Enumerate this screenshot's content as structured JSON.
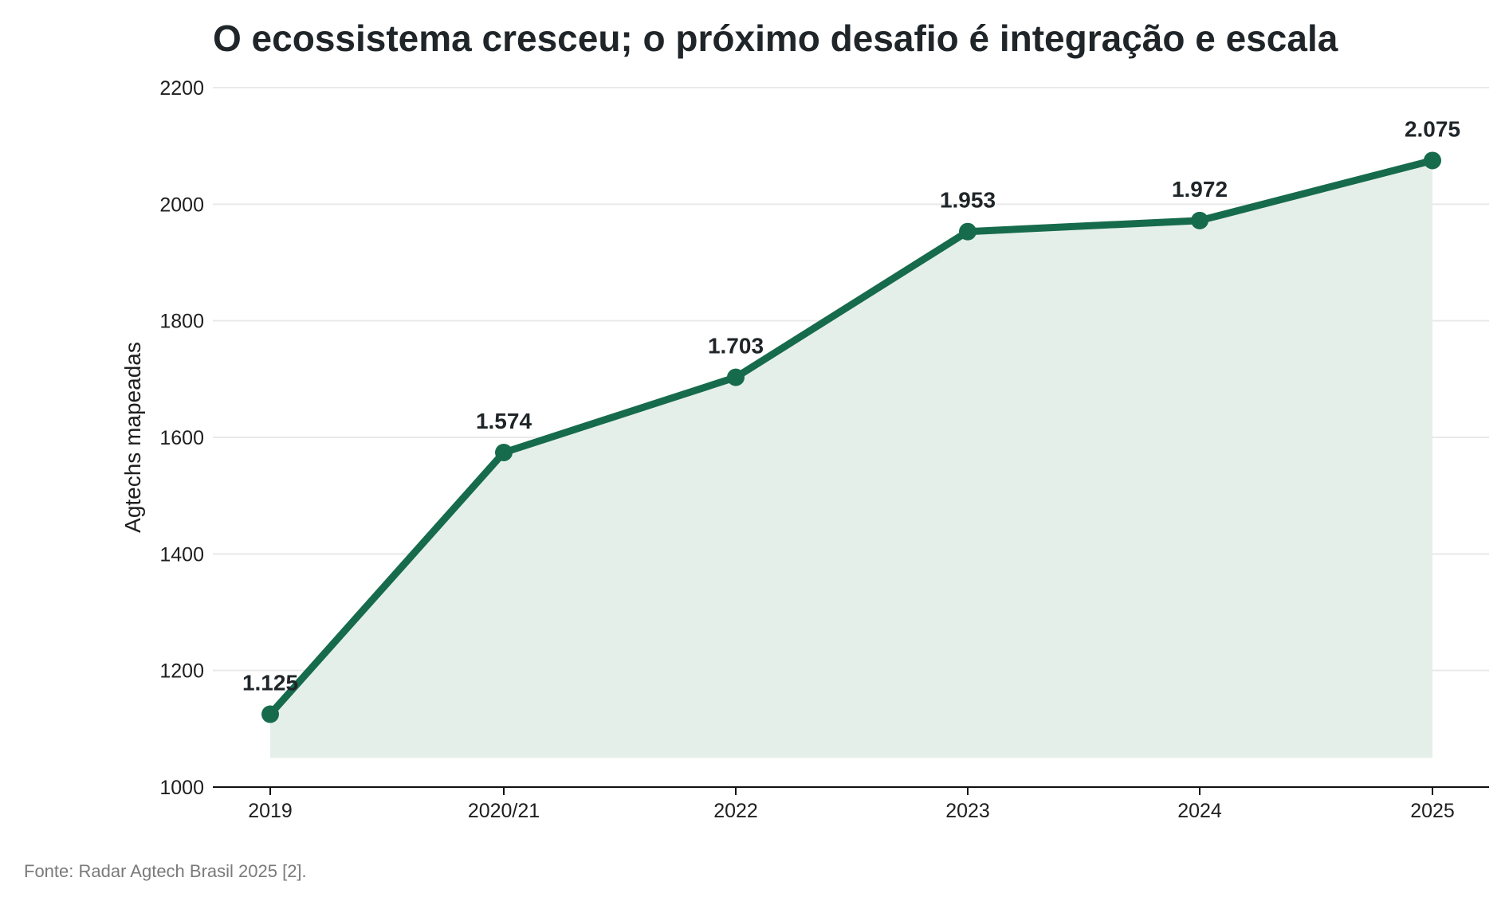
{
  "page": {
    "title": "O ecossistema cresceu; o próximo desafio é integração e escala",
    "source": "Fonte: Radar Agtech Brasil 2025 [2]."
  },
  "colors": {
    "line": "#176b4d",
    "fill": "#e5efe9",
    "grid": "#e9e9e9",
    "axis": "#111111",
    "source_text": "#7a7a7a"
  },
  "chart_data": {
    "type": "line",
    "title": "O ecossistema cresceu; o próximo desafio é integração e escala",
    "ylabel": "Agtechs mapeadas",
    "xlabel": "",
    "categories": [
      "2019",
      "2020/21",
      "2022",
      "2023",
      "2024",
      "2025"
    ],
    "series": [
      {
        "name": "",
        "values": [
          1125,
          1574,
          1703,
          1953,
          1972,
          2075
        ],
        "labels": [
          "1.125",
          "1.574",
          "1.703",
          "1.953",
          "1.972",
          "2.075"
        ]
      }
    ],
    "ylim": [
      1000,
      2200
    ],
    "yticks": [
      1000,
      1200,
      1400,
      1600,
      1800,
      2000,
      2200
    ],
    "area_fill_floor": 1050,
    "grid": true,
    "legend": "none"
  }
}
